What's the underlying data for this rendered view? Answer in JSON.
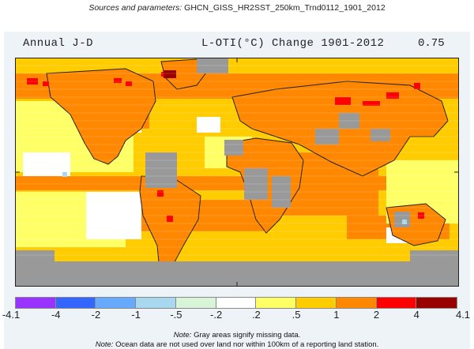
{
  "header": {
    "params_label": "Sources and parameters:",
    "params_value": "GHCN_GISS_HR2SST_250km_Trnd0112_1901_2012"
  },
  "map": {
    "title_left": "Annual J-D",
    "title_center": "L-OTI(°C) Change 1901-2012",
    "title_right": "0.75"
  },
  "legend": {
    "bins": [
      {
        "color": "#9933ff"
      },
      {
        "color": "#3366ff"
      },
      {
        "color": "#66aaff"
      },
      {
        "color": "#a8d8f0"
      },
      {
        "color": "#d9f5d9"
      },
      {
        "color": "#ffffff"
      },
      {
        "color": "#ffff66"
      },
      {
        "color": "#ffcc00"
      },
      {
        "color": "#ff8800"
      },
      {
        "color": "#ff0000"
      },
      {
        "color": "#990000"
      }
    ],
    "ticks": [
      "-4.1",
      "-4",
      "-2",
      "-1",
      "-.5",
      "-.2",
      ".2",
      ".5",
      "1",
      "2",
      "4",
      "4.1"
    ]
  },
  "notes": {
    "note_word": "Note:",
    "line1": "Gray areas signify missing data.",
    "line2": "Ocean data are not used over land nor within 100km of a reporting land station."
  }
}
